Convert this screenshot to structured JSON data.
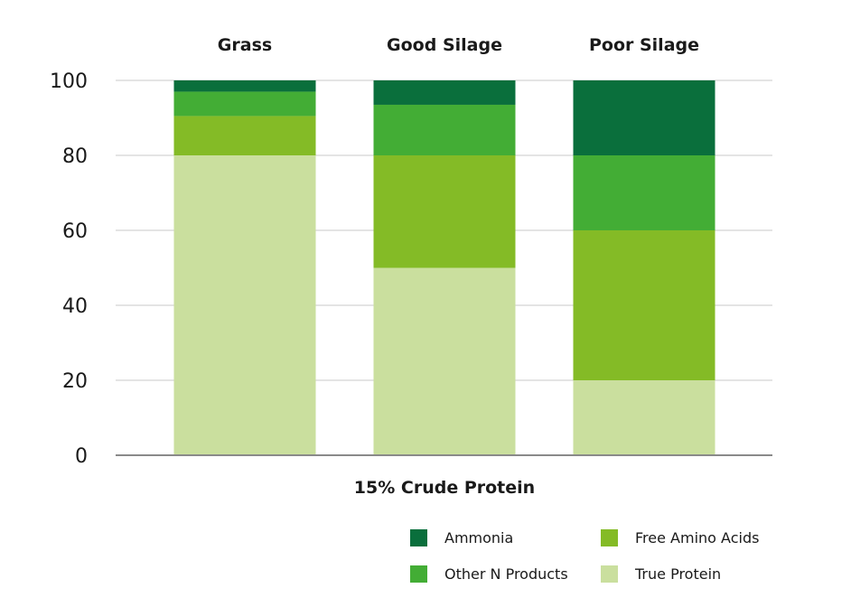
{
  "chart_data": {
    "type": "bar",
    "stacked": true,
    "categories": [
      "Grass",
      "Good Silage",
      "Poor Silage"
    ],
    "series": [
      {
        "name": "True Protein",
        "color": "#cadf9e",
        "values": [
          80,
          50,
          20
        ]
      },
      {
        "name": "Free Amino Acids",
        "color": "#84bb26",
        "values": [
          10.5,
          30,
          40
        ]
      },
      {
        "name": "Other N Products",
        "color": "#43ad35",
        "values": [
          6.5,
          13.5,
          20
        ]
      },
      {
        "name": "Ammonia",
        "color": "#0a6f3c",
        "values": [
          3,
          6.5,
          20
        ]
      }
    ],
    "xlabel": "15% Crude Protein",
    "ylabel": "",
    "ylim": [
      0,
      100
    ],
    "yticks": [
      0,
      20,
      40,
      60,
      80,
      100
    ],
    "grid": true,
    "legend_position": "bottom-right",
    "legend_order": [
      "Ammonia",
      "Free Amino Acids",
      "Other N Products",
      "True Protein"
    ]
  }
}
